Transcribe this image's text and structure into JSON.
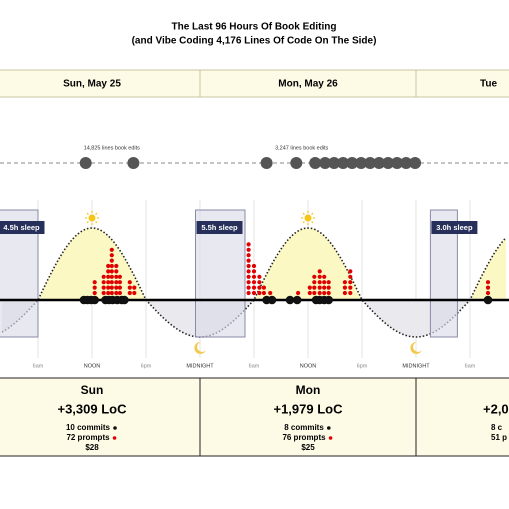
{
  "chart_data": {
    "type": "timeline",
    "title": "The Last 96 Hours Of Book Editing",
    "subtitle": "(and Vibe Coding 4,176 Lines Of Code On The Side)",
    "xlim": [
      2,
      58
    ],
    "xticks": [
      {
        "value": 6,
        "label": "6am"
      },
      {
        "value": 12,
        "label": "NOON"
      },
      {
        "value": 18,
        "label": "6pm"
      },
      {
        "value": 24,
        "label": "MIDNIGHT"
      },
      {
        "value": 30,
        "label": "6am"
      },
      {
        "value": 36,
        "label": "NOON"
      },
      {
        "value": 42,
        "label": "6pm"
      },
      {
        "value": 48,
        "label": "MIDNIGHT"
      },
      {
        "value": 54,
        "label": "6am"
      }
    ],
    "grid": true,
    "days": [
      {
        "start": 0,
        "end": 24,
        "header": "Sun, May 25",
        "name": "Sun",
        "loc": "+3,309 LoC",
        "commits": "10 commits",
        "prompts": "72 prompts",
        "cost": "$28"
      },
      {
        "start": 24,
        "end": 48,
        "header": "Mon, May 26",
        "name": "Mon",
        "loc": "+1,979 LoC",
        "commits": "8 commits",
        "prompts": "76 prompts",
        "cost": "$25"
      },
      {
        "start": 48,
        "end": 72,
        "header": "Tue",
        "loc": "+2,0",
        "commits": "8 c",
        "prompts": "51 p"
      }
    ],
    "sleep": [
      {
        "start": 1.5,
        "end": 6,
        "label": "4.5h sleep"
      },
      {
        "start": 23.5,
        "end": 29,
        "label": "5.5h sleep"
      },
      {
        "start": 49.6,
        "end": 52.6,
        "label": "3.0h sleep"
      }
    ],
    "book_edits": {
      "color": "#555555",
      "x": [
        11.3,
        16.6,
        31.4,
        34.7,
        36.8,
        37.9,
        38.9,
        39.9,
        40.9,
        41.9,
        42.9,
        43.9,
        44.9,
        45.9,
        46.9,
        47.9
      ],
      "labels": [
        {
          "x": 14.2,
          "text": "14,825 lines book edits"
        },
        {
          "x": 35.3,
          "text": "3,247 lines book edits"
        }
      ]
    },
    "commits": {
      "color": "#111111",
      "x": [
        11.1,
        11.5,
        11.9,
        12.3,
        13.5,
        13.9,
        14.3,
        14.8,
        15.3,
        15.6,
        31.4,
        32.0,
        34.0,
        34.8,
        36.9,
        37.3,
        37.8,
        38.3,
        56.0
      ]
    },
    "prompts": {
      "color": "#e00000",
      "x": [
        12.3,
        13.3,
        13.8,
        14.2,
        14.7,
        15.1,
        16.2,
        16.7,
        29.4,
        30.0,
        30.6,
        31.1,
        31.8,
        34.9,
        36.2,
        36.7,
        37.3,
        37.8,
        38.3,
        40.1,
        40.7,
        56.0
      ],
      "values": [
        3,
        4,
        6,
        9,
        6,
        4,
        3,
        2,
        10,
        6,
        4,
        2,
        1,
        1,
        2,
        4,
        5,
        4,
        3,
        3,
        5,
        3
      ]
    }
  }
}
